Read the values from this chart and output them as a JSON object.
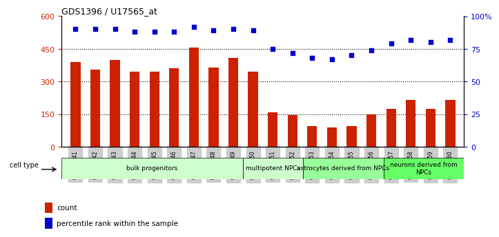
{
  "title": "GDS1396 / U17565_at",
  "samples": [
    "GSM47541",
    "GSM47542",
    "GSM47543",
    "GSM47544",
    "GSM47545",
    "GSM47546",
    "GSM47547",
    "GSM47548",
    "GSM47549",
    "GSM47550",
    "GSM47551",
    "GSM47552",
    "GSM47553",
    "GSM47554",
    "GSM47555",
    "GSM47556",
    "GSM47557",
    "GSM47558",
    "GSM47559",
    "GSM47560"
  ],
  "counts": [
    390,
    355,
    400,
    345,
    345,
    360,
    455,
    365,
    410,
    345,
    160,
    145,
    95,
    90,
    95,
    150,
    175,
    215,
    175,
    215
  ],
  "percentiles": [
    90,
    90,
    90,
    88,
    88,
    88,
    92,
    89,
    90,
    89,
    75,
    72,
    68,
    67,
    70,
    74,
    79,
    82,
    80,
    82
  ],
  "cell_types": [
    {
      "label": "bulk progenitors",
      "start": 0,
      "end": 9,
      "color": "#ccffcc"
    },
    {
      "label": "multipotent NPCs",
      "start": 9,
      "end": 12,
      "color": "#ccffcc"
    },
    {
      "label": "astrocytes derived from NPCs",
      "start": 12,
      "end": 16,
      "color": "#99ff99"
    },
    {
      "label": "neurons derived from\nNPCs",
      "start": 16,
      "end": 20,
      "color": "#66ff66"
    }
  ],
  "ct_colors": [
    "#ccffcc",
    "#ccffcc",
    "#99ff99",
    "#66ff66"
  ],
  "ylim_left": [
    0,
    600
  ],
  "ylim_right": [
    0,
    100
  ],
  "yticks_left": [
    0,
    150,
    300,
    450,
    600
  ],
  "yticks_right": [
    0,
    25,
    50,
    75,
    100
  ],
  "ytick_right_labels": [
    "0",
    "25",
    "50",
    "75",
    "100%"
  ],
  "bar_color": "#cc2200",
  "dot_color": "#0000cc",
  "grid_color": "#000000",
  "legend_count_color": "#cc2200",
  "legend_dot_color": "#0000cc",
  "cell_type_label": "cell type"
}
